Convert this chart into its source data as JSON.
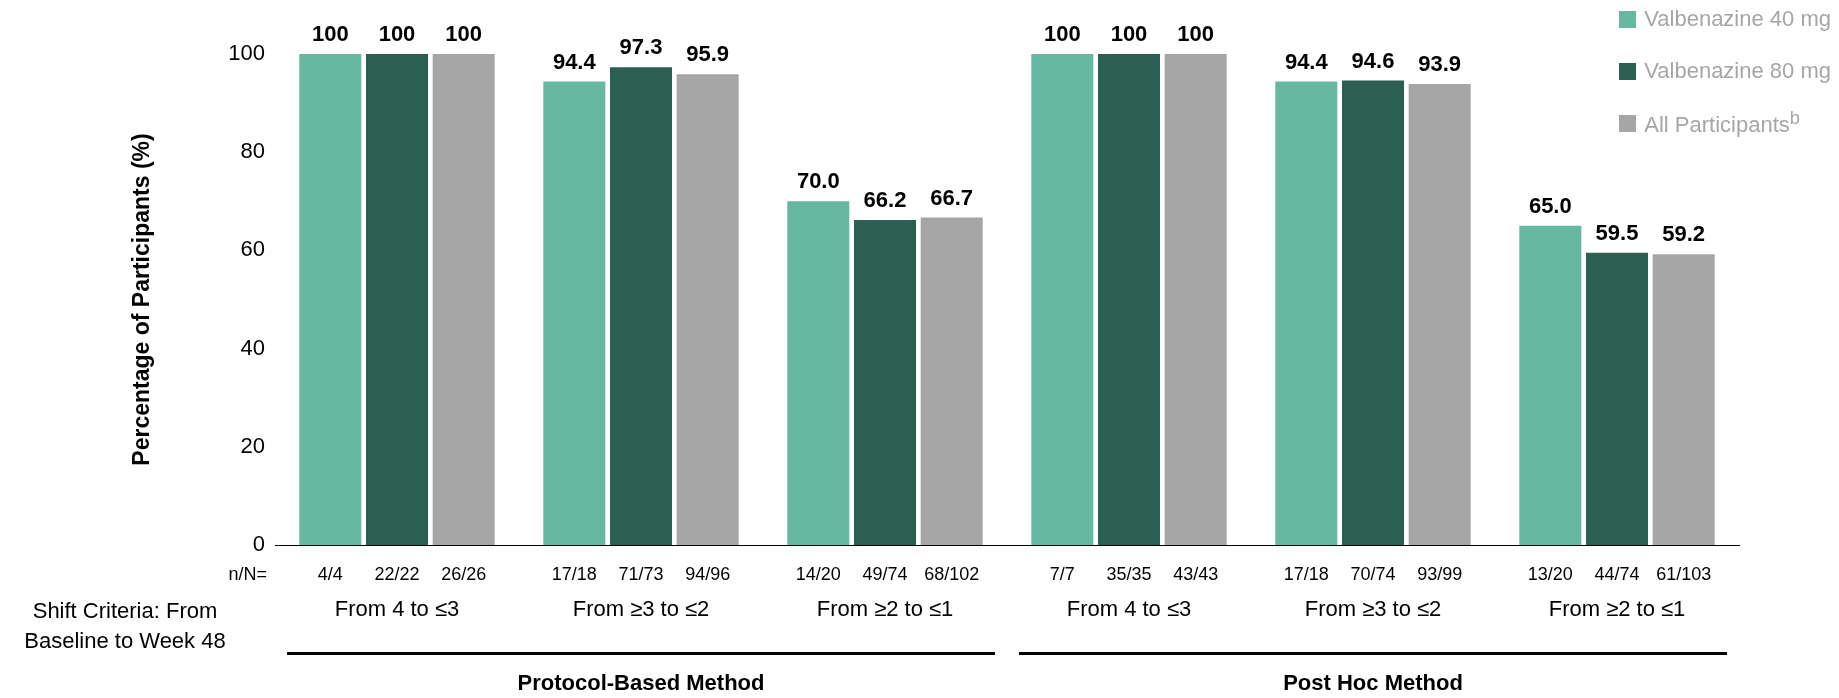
{
  "chart_data": {
    "type": "bar",
    "ylabel": "Percentage of Participants (%)",
    "categories": [
      "From 4 to ≤3",
      "From ≥3 to ≤2",
      "From ≥2 to ≤1",
      "From 4 to ≤3",
      "From ≥3 to ≤2",
      "From ≥2 to ≤1"
    ],
    "series": [
      {
        "name": "Valbenazine 40 mg",
        "color": "#66b9a0",
        "values": [
          100,
          94.4,
          70.0,
          100,
          94.4,
          65.0
        ],
        "value_labels": [
          "100",
          "94.4",
          "70.0",
          "100",
          "94.4",
          "65.0"
        ]
      },
      {
        "name": "Valbenazine 80 mg",
        "color": "#2b5f51",
        "values": [
          100,
          97.3,
          66.2,
          100,
          94.6,
          59.5
        ],
        "value_labels": [
          "100",
          "97.3",
          "66.2",
          "100",
          "94.6",
          "59.5"
        ]
      },
      {
        "name": "All Participants$^{b}$",
        "color": "#a6a6a6",
        "values": [
          100,
          95.9,
          66.7,
          100,
          93.9,
          59.2
        ],
        "value_labels": [
          "100",
          "95.9",
          "66.7",
          "100",
          "93.9",
          "59.2"
        ]
      }
    ],
    "ylim": [
      0,
      100
    ],
    "yticks": [
      0,
      20,
      40,
      60,
      80,
      100
    ],
    "grid": false,
    "legend": "top right",
    "annotations": [
      "n/N=",
      "4/4",
      "22/22",
      "26/26",
      "17/18",
      "71/73",
      "94/96",
      "14/20",
      "49/74",
      "68/102",
      "7/7",
      "35/35",
      "43/43",
      "17/18",
      "70/74",
      "93/99",
      "13/20",
      "44/74",
      "61/103",
      "Shift Criteria: From Baseline to Week 48",
      "Protocol-Based Method",
      "Post Hoc Method"
    ]
  }
}
